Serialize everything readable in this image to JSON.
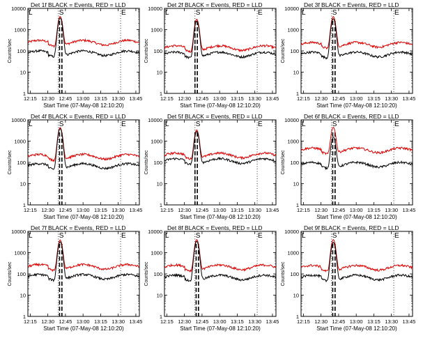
{
  "figure": {
    "xlabel": "Start Time (07-May-08 12:10:20)",
    "ylabel": "Counts/sec"
  },
  "chart_data": [
    {
      "type": "line",
      "title": "Det 1f BLACK = Events, RED = LLD",
      "xlabel": "Start Time (07-May-08 12:10:20)",
      "ylabel": "Counts/sec",
      "yscale": "log",
      "ylim": [
        1,
        10000
      ],
      "xlim": [
        "12:13",
        "13:48"
      ],
      "x_ticks": [
        "12:15",
        "12:30",
        "12:45",
        "13:00",
        "13:15",
        "13:30",
        "13:45"
      ],
      "y_ticks": [
        "1",
        "10",
        "100",
        "1000",
        "10000"
      ],
      "markers": [
        {
          "label": "L",
          "time": "12:13"
        },
        {
          "label": "S",
          "time": "12:39"
        },
        {
          "label": "E",
          "time": "13:32"
        }
      ],
      "peak_dashed_times": [
        "12:40",
        "12:42"
      ],
      "series": [
        {
          "color": "#e00000",
          "baseline": 250,
          "peak": 4000
        },
        {
          "color": "#000000",
          "baseline": 80,
          "peak": 3500
        }
      ]
    },
    {
      "type": "line",
      "title": "Det 2f BLACK = Events, RED = LLD",
      "xlabel": "Start Time (07-May-08 12:10:20)",
      "ylabel": "Counts/sec",
      "yscale": "log",
      "ylim": [
        1,
        10000
      ],
      "xlim": [
        "12:13",
        "13:48"
      ],
      "x_ticks": [
        "12:15",
        "12:30",
        "12:45",
        "13:00",
        "13:15",
        "13:30",
        "13:45"
      ],
      "y_ticks": [
        "1",
        "10",
        "100",
        "1000",
        "10000"
      ],
      "markers": [
        {
          "label": "L",
          "time": "12:13"
        },
        {
          "label": "S",
          "time": "12:39"
        },
        {
          "label": "E",
          "time": "13:32"
        }
      ],
      "peak_dashed_times": [
        "12:39",
        "12:41"
      ],
      "series": [
        {
          "color": "#e00000",
          "baseline": 140,
          "peak": 3000
        },
        {
          "color": "#000000",
          "baseline": 70,
          "peak": 2500
        }
      ]
    },
    {
      "type": "line",
      "title": "Det 3f BLACK = Events, RED = LLD",
      "xlabel": "Start Time (07-May-08 12:10:20)",
      "ylabel": "Counts/sec",
      "yscale": "log",
      "ylim": [
        1,
        10000
      ],
      "xlim": [
        "12:13",
        "13:48"
      ],
      "x_ticks": [
        "12:15",
        "12:30",
        "12:45",
        "13:00",
        "13:15",
        "13:30",
        "13:45"
      ],
      "y_ticks": [
        "1",
        "10",
        "100",
        "1000",
        "10000"
      ],
      "markers": [
        {
          "label": "L",
          "time": "12:13"
        },
        {
          "label": "S",
          "time": "12:39"
        },
        {
          "label": "E",
          "time": "13:32"
        }
      ],
      "peak_dashed_times": [
        "12:40",
        "12:42"
      ],
      "series": [
        {
          "color": "#e00000",
          "baseline": 200,
          "peak": 4000
        },
        {
          "color": "#000000",
          "baseline": 70,
          "peak": 3200
        }
      ]
    },
    {
      "type": "line",
      "title": "Det 4f BLACK = Events, RED = LLD",
      "xlabel": "Start Time (07-May-08 12:10:20)",
      "ylabel": "Counts/sec",
      "yscale": "log",
      "ylim": [
        1,
        10000
      ],
      "xlim": [
        "12:13",
        "13:48"
      ],
      "x_ticks": [
        "12:15",
        "12:30",
        "12:45",
        "13:00",
        "13:15",
        "13:30",
        "13:45"
      ],
      "y_ticks": [
        "1",
        "10",
        "100",
        "1000",
        "10000"
      ],
      "markers": [
        {
          "label": "L",
          "time": "12:13"
        },
        {
          "label": "S",
          "time": "12:39"
        },
        {
          "label": "E",
          "time": "13:32"
        }
      ],
      "peak_dashed_times": [
        "12:40",
        "12:42"
      ],
      "series": [
        {
          "color": "#e00000",
          "baseline": 190,
          "peak": 4200
        },
        {
          "color": "#000000",
          "baseline": 70,
          "peak": 3800
        }
      ]
    },
    {
      "type": "line",
      "title": "Det 5f BLACK = Events, RED = LLD",
      "xlabel": "Start Time (07-May-08 12:10:20)",
      "ylabel": "Counts/sec",
      "yscale": "log",
      "ylim": [
        1,
        10000
      ],
      "xlim": [
        "12:13",
        "13:48"
      ],
      "x_ticks": [
        "12:15",
        "12:30",
        "12:45",
        "13:00",
        "13:15",
        "13:30",
        "13:45"
      ],
      "y_ticks": [
        "1",
        "10",
        "100",
        "1000",
        "10000"
      ],
      "markers": [
        {
          "label": "L",
          "time": "12:13"
        },
        {
          "label": "S",
          "time": "12:39"
        },
        {
          "label": "E",
          "time": "13:32"
        }
      ],
      "peak_dashed_times": [
        "12:39",
        "12:41"
      ],
      "series": [
        {
          "color": "#e00000",
          "baseline": 220,
          "peak": 3200
        },
        {
          "color": "#000000",
          "baseline": 120,
          "peak": 2800
        }
      ]
    },
    {
      "type": "line",
      "title": "Det 6f BLACK = Events, RED = LLD",
      "xlabel": "Start Time (07-May-08 12:10:20)",
      "ylabel": "Counts/sec",
      "yscale": "log",
      "ylim": [
        1,
        10000
      ],
      "xlim": [
        "12:13",
        "13:48"
      ],
      "x_ticks": [
        "12:15",
        "12:30",
        "12:45",
        "13:00",
        "13:15",
        "13:30",
        "13:45"
      ],
      "y_ticks": [
        "1",
        "10",
        "100",
        "1000",
        "10000"
      ],
      "markers": [
        {
          "label": "L",
          "time": "12:13"
        },
        {
          "label": "S",
          "time": "12:39"
        },
        {
          "label": "E",
          "time": "13:32"
        }
      ],
      "peak_dashed_times": [
        "12:40",
        "12:42"
      ],
      "series": [
        {
          "color": "#e00000",
          "baseline": 380,
          "peak": 4200
        },
        {
          "color": "#000000",
          "baseline": 80,
          "peak": 1500
        }
      ]
    },
    {
      "type": "line",
      "title": "Det 7f BLACK = Events, RED = LLD",
      "xlabel": "Start Time (07-May-08 12:10:20)",
      "ylabel": "Counts/sec",
      "yscale": "log",
      "ylim": [
        1,
        10000
      ],
      "xlim": [
        "12:13",
        "13:48"
      ],
      "x_ticks": [
        "12:15",
        "12:30",
        "12:45",
        "13:00",
        "13:15",
        "13:30",
        "13:45"
      ],
      "y_ticks": [
        "1",
        "10",
        "100",
        "1000",
        "10000"
      ],
      "markers": [
        {
          "label": "L",
          "time": "12:13"
        },
        {
          "label": "S",
          "time": "12:39"
        },
        {
          "label": "E",
          "time": "13:32"
        }
      ],
      "peak_dashed_times": [
        "12:40",
        "12:42"
      ],
      "series": [
        {
          "color": "#e00000",
          "baseline": 220,
          "peak": 3800
        },
        {
          "color": "#000000",
          "baseline": 75,
          "peak": 3200
        }
      ]
    },
    {
      "type": "line",
      "title": "Det 8f BLACK = Events, RED = LLD",
      "xlabel": "Start Time (07-May-08 12:10:20)",
      "ylabel": "Counts/sec",
      "yscale": "log",
      "ylim": [
        1,
        10000
      ],
      "xlim": [
        "12:13",
        "13:48"
      ],
      "x_ticks": [
        "12:15",
        "12:30",
        "12:45",
        "13:00",
        "13:15",
        "13:30",
        "13:45"
      ],
      "y_ticks": [
        "1",
        "10",
        "100",
        "1000",
        "10000"
      ],
      "markers": [
        {
          "label": "L",
          "time": "12:13"
        },
        {
          "label": "S",
          "time": "12:39"
        },
        {
          "label": "E",
          "time": "13:32"
        }
      ],
      "peak_dashed_times": [
        "12:40",
        "12:42"
      ],
      "series": [
        {
          "color": "#e00000",
          "baseline": 210,
          "peak": 4000
        },
        {
          "color": "#000000",
          "baseline": 70,
          "peak": 3400
        }
      ]
    },
    {
      "type": "line",
      "title": "Det 9f BLACK = Events, RED = LLD",
      "xlabel": "Start Time (07-May-08 12:10:20)",
      "ylabel": "Counts/sec",
      "yscale": "log",
      "ylim": [
        1,
        10000
      ],
      "xlim": [
        "12:13",
        "13:48"
      ],
      "x_ticks": [
        "12:15",
        "12:30",
        "12:45",
        "13:00",
        "13:15",
        "13:30",
        "13:45"
      ],
      "y_ticks": [
        "1",
        "10",
        "100",
        "1000",
        "10000"
      ],
      "markers": [
        {
          "label": "L",
          "time": "12:13"
        },
        {
          "label": "S",
          "time": "12:39"
        },
        {
          "label": "E",
          "time": "13:32"
        }
      ],
      "peak_dashed_times": [
        "12:40",
        "12:42"
      ],
      "series": [
        {
          "color": "#e00000",
          "baseline": 200,
          "peak": 4000
        },
        {
          "color": "#000000",
          "baseline": 70,
          "peak": 3000
        }
      ]
    }
  ]
}
